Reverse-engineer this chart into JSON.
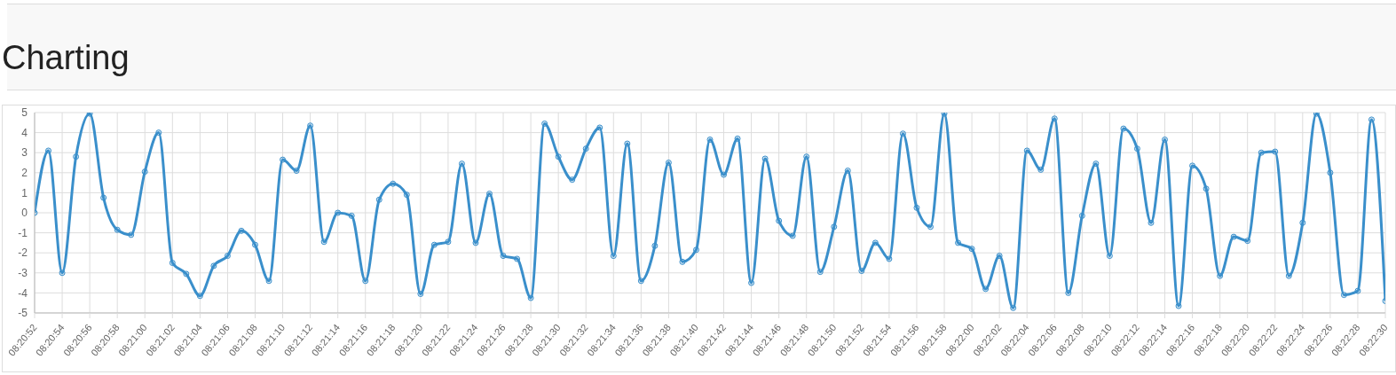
{
  "chart_data": {
    "type": "line",
    "title": "Charting",
    "categories": [
      "08:20:52",
      null,
      "08:20:54",
      null,
      "08:20:56",
      null,
      "08:20:58",
      null,
      "08:21:00",
      null,
      "08:21:02",
      null,
      "08:21:04",
      null,
      "08:21:06",
      null,
      "08:21:08",
      null,
      "08:21:10",
      null,
      "08:21:12",
      null,
      "08:21:14",
      null,
      "08:21:16",
      null,
      "08:21:18",
      null,
      "08:21:20",
      null,
      "08:21:22",
      null,
      "08:21:24",
      null,
      "08:21:26",
      null,
      "08:21:28",
      null,
      "08:21:30",
      null,
      "08:21:32",
      null,
      "08:21:34",
      null,
      "08:21:36",
      null,
      "08:21:38",
      null,
      "08:21:40",
      null,
      "08:21:42",
      null,
      "08:21:44",
      null,
      "08:21:46",
      null,
      "08:21:48",
      null,
      "08:21:50",
      null,
      "08:21:52",
      null,
      "08:21:54",
      null,
      "08:21:56",
      null,
      "08:21:58",
      null,
      "08:22:00",
      null,
      "08:22:02",
      null,
      "08:22:04",
      null,
      "08:22:06",
      null,
      "08:22:08",
      null,
      "08:22:10",
      null,
      "08:22:12",
      null,
      "08:22:14",
      null,
      "08:22:16",
      null,
      "08:22:18",
      null,
      "08:22:20",
      null,
      "08:22:22",
      null,
      "08:22:24",
      null,
      "08:22:26",
      null,
      "08:22:28",
      null,
      "08:22:30"
    ],
    "series": [
      {
        "color": "#3a8fcb",
        "values": [
          0,
          3.1,
          -3.0,
          2.8,
          4.95,
          0.75,
          -0.85,
          -1.1,
          2.05,
          4.0,
          -2.5,
          -3.05,
          -4.15,
          -2.65,
          -2.15,
          -0.9,
          -1.6,
          -3.4,
          2.65,
          2.1,
          4.35,
          -1.45,
          0.0,
          -0.15,
          -3.4,
          0.65,
          1.45,
          0.9,
          -4.05,
          -1.6,
          -1.45,
          2.45,
          -1.5,
          0.95,
          -2.15,
          -2.3,
          -4.25,
          4.45,
          2.8,
          1.65,
          3.2,
          4.25,
          -2.15,
          3.45,
          -3.4,
          -1.65,
          2.5,
          -2.45,
          -1.85,
          3.65,
          1.9,
          3.7,
          -3.5,
          2.7,
          -0.4,
          -1.15,
          2.8,
          -2.95,
          -0.7,
          2.1,
          -2.9,
          -1.5,
          -2.3,
          3.95,
          0.25,
          -0.7,
          4.95,
          -1.5,
          -1.8,
          -3.8,
          -2.15,
          -4.75,
          3.1,
          2.15,
          4.7,
          -4.0,
          -0.15,
          2.45,
          -2.15,
          4.2,
          3.2,
          -0.5,
          3.65,
          -4.65,
          2.35,
          1.2,
          -3.15,
          -1.2,
          -1.4,
          3.0,
          3.05,
          -3.15,
          -0.5,
          4.95,
          2.0,
          -4.1,
          -3.9,
          4.65,
          -4.4
        ]
      }
    ],
    "ylim": [
      -5,
      5
    ],
    "yticks": [
      -5,
      -4,
      -3,
      -2,
      -1,
      0,
      1,
      2,
      3,
      4,
      5
    ],
    "grid": true,
    "marker": "circle",
    "line_style": "solid"
  }
}
